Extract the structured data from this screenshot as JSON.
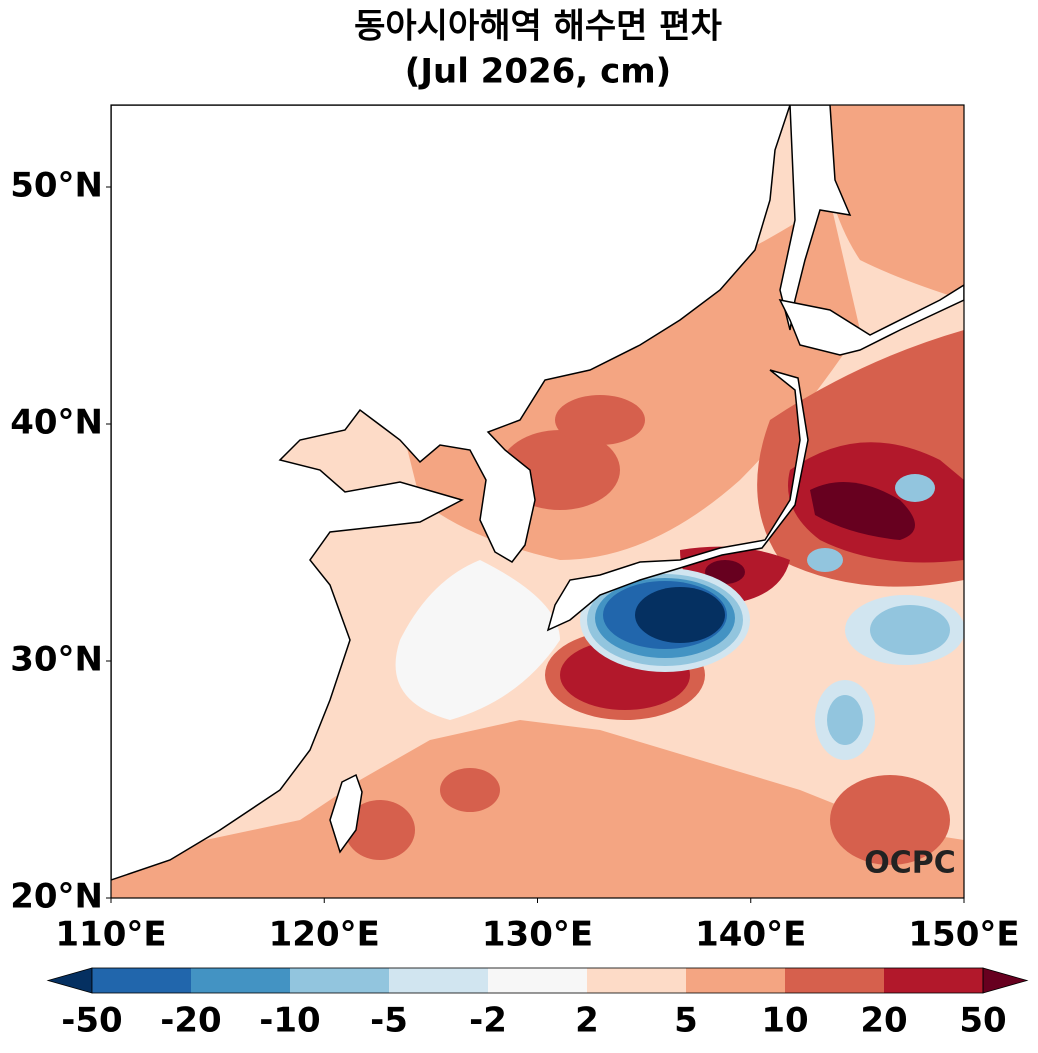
{
  "title": "동아시아해역 해수면 편차",
  "subtitle": "(Jul 2026, cm)",
  "map": {
    "lon_range": [
      110,
      150
    ],
    "lat_range": [
      20,
      53.46
    ],
    "lon_ticks": [
      {
        "value": 110,
        "label": "110°E"
      },
      {
        "value": 120,
        "label": "120°E"
      },
      {
        "value": 130,
        "label": "130°E"
      },
      {
        "value": 140,
        "label": "140°E"
      },
      {
        "value": 150,
        "label": "150°E"
      }
    ],
    "lat_ticks": [
      {
        "value": 20,
        "label": "20°N"
      },
      {
        "value": 30,
        "label": "30°N"
      },
      {
        "value": 40,
        "label": "40°N"
      },
      {
        "value": 50,
        "label": "50°N"
      }
    ]
  },
  "colorbar": {
    "levels": [
      -50,
      -20,
      -10,
      -5,
      -2,
      2,
      5,
      10,
      20,
      50
    ],
    "colors": [
      "#053061",
      "#2166ac",
      "#4393c3",
      "#92c5de",
      "#d1e5f0",
      "#f7f7f7",
      "#fddbc7",
      "#f4a582",
      "#d6604d",
      "#b2182b",
      "#67001f"
    ]
  },
  "watermark": "OCPC"
}
